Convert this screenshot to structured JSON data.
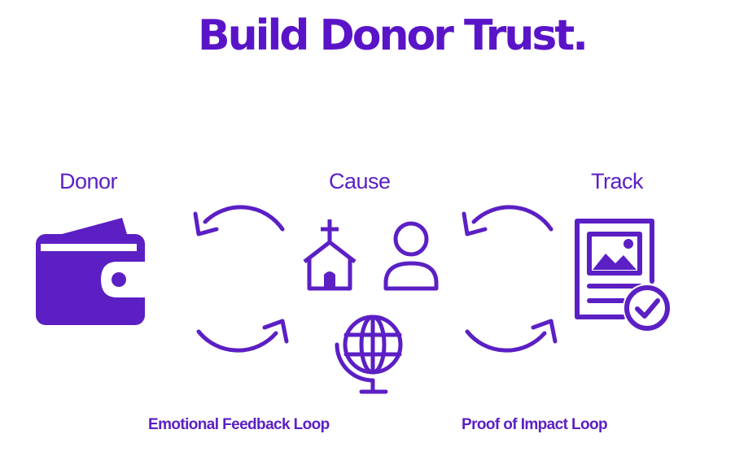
{
  "title": "Build Donor Trust.",
  "nodes": {
    "donor": "Donor",
    "cause": "Cause",
    "track": "Track"
  },
  "loops": {
    "emotional": "Emotional Feedback Loop",
    "impact": "Proof of Impact Loop"
  },
  "icons": {
    "donor": "wallet-icon",
    "cause": [
      "church-icon",
      "person-icon",
      "globe-icon"
    ],
    "track": "document-check-icon",
    "arrows": "circular-arrow-icon"
  },
  "colors": {
    "accent": "#5b1fc4"
  }
}
